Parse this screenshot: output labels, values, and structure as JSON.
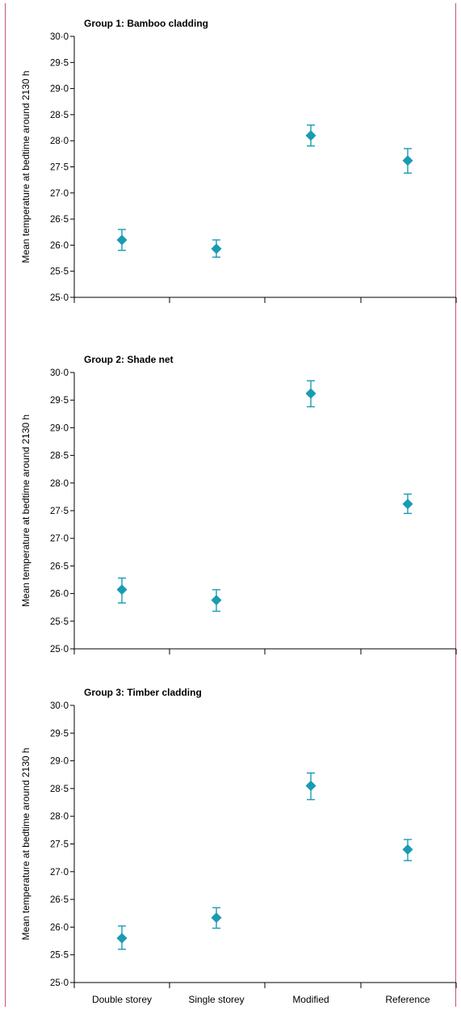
{
  "chart_data": [
    {
      "type": "scatter",
      "title": "Group 1: Bamboo cladding",
      "ylabel": "Mean temperature at bedtime around 2130 h",
      "categories": [
        "Double storey",
        "Single storey",
        "Modified",
        "Reference"
      ],
      "ylim": [
        25.0,
        30.0
      ],
      "yticks": [
        "25·0",
        "25·5",
        "26·0",
        "26·5",
        "27·0",
        "27·5",
        "28·0",
        "28·5",
        "29·0",
        "29·5",
        "30·0"
      ],
      "show_xtick_labels": false,
      "series": [
        {
          "values": [
            26.1,
            25.93,
            28.1,
            27.62
          ],
          "err_low": [
            25.9,
            25.77,
            27.9,
            27.38
          ],
          "err_high": [
            26.3,
            26.1,
            28.3,
            27.85
          ]
        }
      ]
    },
    {
      "type": "scatter",
      "title": "Group 2: Shade net",
      "ylabel": "Mean temperature at bedtime around 2130 h",
      "categories": [
        "Double storey",
        "Single storey",
        "Modified",
        "Reference"
      ],
      "ylim": [
        25.0,
        30.0
      ],
      "yticks": [
        "25·0",
        "25·5",
        "26·0",
        "26·5",
        "27·0",
        "27·5",
        "28·0",
        "28·5",
        "29·0",
        "29·5",
        "30·0"
      ],
      "show_xtick_labels": false,
      "series": [
        {
          "values": [
            26.07,
            25.88,
            29.62,
            27.62
          ],
          "err_low": [
            25.83,
            25.68,
            29.38,
            27.45
          ],
          "err_high": [
            26.28,
            26.07,
            29.85,
            27.8
          ]
        }
      ]
    },
    {
      "type": "scatter",
      "title": "Group 3: Timber cladding",
      "ylabel": "Mean temperature at bedtime around 2130 h",
      "categories": [
        "Double storey",
        "Single storey",
        "Modified",
        "Reference"
      ],
      "ylim": [
        25.0,
        30.0
      ],
      "yticks": [
        "25·0",
        "25·5",
        "26·0",
        "26·5",
        "27·0",
        "27·5",
        "28·0",
        "28·5",
        "29·0",
        "29·5",
        "30·0"
      ],
      "show_xtick_labels": true,
      "series": [
        {
          "values": [
            25.8,
            26.17,
            28.55,
            27.4
          ],
          "err_low": [
            25.6,
            25.98,
            28.3,
            27.2
          ],
          "err_high": [
            26.02,
            26.35,
            28.78,
            27.58
          ]
        }
      ]
    }
  ],
  "colors": {
    "marker": "#1a9bb3",
    "frame": "#c4527a"
  }
}
